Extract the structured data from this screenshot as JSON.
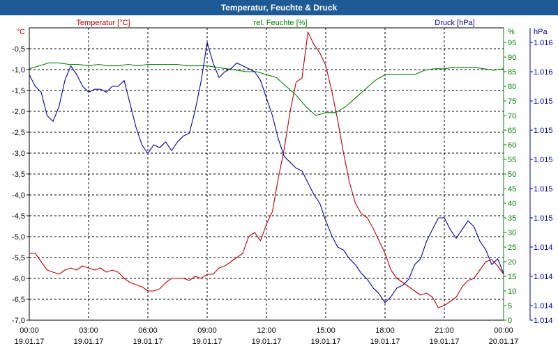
{
  "chart_data": {
    "type": "line",
    "title": "Temperatur, Feuchte & Druck",
    "x_ticks": [
      {
        "time": "00:00",
        "date": "19.01.17"
      },
      {
        "time": "03:00",
        "date": "19.01.17"
      },
      {
        "time": "06:00",
        "date": "19.01.17"
      },
      {
        "time": "09:00",
        "date": "19.01.17"
      },
      {
        "time": "12:00",
        "date": "19.01.17"
      },
      {
        "time": "15:00",
        "date": "19.01.17"
      },
      {
        "time": "18:00",
        "date": "19.01.17"
      },
      {
        "time": "21:00",
        "date": "19.01.17"
      },
      {
        "time": "00:00",
        "date": "20.01.17"
      }
    ],
    "x_range_hours": [
      0,
      24
    ],
    "grid": true,
    "axes": {
      "temperature": {
        "label": "Temperatur [°C]",
        "unit": "°C",
        "color": "#c00000",
        "side": "left",
        "range": [
          -7.0,
          0.0
        ],
        "ticks": [
          "-0,5",
          "-1,0",
          "-1,5",
          "-2,0",
          "-2,5",
          "-3,0",
          "-3,5",
          "-4,0",
          "-4,5",
          "-5,0",
          "-5,5",
          "-6,0",
          "-6,5",
          "-7,0"
        ],
        "tick_values": [
          -0.5,
          -1.0,
          -1.5,
          -2.0,
          -2.5,
          -3.0,
          -3.5,
          -4.0,
          -4.5,
          -5.0,
          -5.5,
          -6.0,
          -6.5,
          -7.0
        ]
      },
      "humidity": {
        "label": "rel. Feuchte [%]",
        "unit": "%",
        "color": "#008000",
        "side": "right",
        "range": [
          0,
          100
        ],
        "ticks": [
          "95",
          "90",
          "85",
          "80",
          "75",
          "70",
          "65",
          "60",
          "55",
          "50",
          "45",
          "40",
          "35",
          "30",
          "25",
          "20",
          "15",
          "10",
          "5",
          "0"
        ],
        "tick_values": [
          95,
          90,
          85,
          80,
          75,
          70,
          65,
          60,
          55,
          50,
          45,
          40,
          35,
          30,
          25,
          20,
          15,
          10,
          5,
          0
        ]
      },
      "pressure": {
        "label": "Druck [hPa]",
        "unit": "hPa",
        "color": "#0000aa",
        "side": "right-outer",
        "range": [
          0,
          100
        ],
        "ticks": [
          "1.016",
          "1.016",
          "1.015",
          "1.015",
          "1.015",
          "1.015",
          "1.015",
          "1.014",
          "1.014",
          "1.014",
          "1.014"
        ],
        "tick_values": [
          95,
          85,
          75,
          65,
          55,
          45,
          35,
          25,
          15,
          5,
          0
        ]
      }
    },
    "series": [
      {
        "name": "Temperatur [°C]",
        "axis": "temperature",
        "color": "#c00000",
        "x": [
          0,
          0.3,
          0.6,
          0.9,
          1.2,
          1.5,
          1.8,
          2.1,
          2.4,
          2.7,
          3.0,
          3.3,
          3.6,
          3.9,
          4.2,
          4.5,
          4.8,
          5.1,
          5.4,
          5.7,
          6.0,
          6.3,
          6.6,
          6.9,
          7.2,
          7.5,
          7.8,
          8.1,
          8.4,
          8.7,
          9.0,
          9.3,
          9.6,
          9.9,
          10.2,
          10.5,
          10.8,
          11.1,
          11.4,
          11.7,
          12.0,
          12.3,
          12.6,
          12.9,
          13.2,
          13.5,
          13.8,
          14.1,
          14.4,
          14.7,
          15.0,
          15.3,
          15.6,
          15.9,
          16.2,
          16.5,
          16.8,
          17.1,
          17.4,
          17.7,
          18.0,
          18.3,
          18.6,
          18.9,
          19.2,
          19.5,
          19.8,
          20.1,
          20.4,
          20.7,
          21.0,
          21.3,
          21.6,
          21.9,
          22.2,
          22.5,
          22.8,
          23.1,
          23.4,
          23.7,
          24.0
        ],
        "values": [
          -5.4,
          -5.4,
          -5.6,
          -5.8,
          -5.85,
          -5.9,
          -5.8,
          -5.75,
          -5.8,
          -5.7,
          -5.75,
          -5.8,
          -5.75,
          -5.85,
          -5.8,
          -5.85,
          -6.0,
          -6.1,
          -6.15,
          -6.2,
          -6.3,
          -6.3,
          -6.25,
          -6.1,
          -6.0,
          -6.0,
          -6.0,
          -6.05,
          -5.95,
          -6.0,
          -5.9,
          -5.9,
          -5.75,
          -5.7,
          -5.6,
          -5.5,
          -5.4,
          -5.0,
          -4.9,
          -5.1,
          -4.7,
          -4.4,
          -3.6,
          -2.9,
          -2.0,
          -1.3,
          -1.2,
          -0.1,
          -0.4,
          -0.6,
          -0.9,
          -1.5,
          -2.2,
          -3.0,
          -3.7,
          -4.2,
          -4.45,
          -4.55,
          -4.8,
          -5.1,
          -5.4,
          -5.8,
          -6.0,
          -6.1,
          -6.2,
          -6.3,
          -6.4,
          -6.35,
          -6.45,
          -6.7,
          -6.65,
          -6.55,
          -6.45,
          -6.2,
          -6.05,
          -6.0,
          -5.8,
          -5.6,
          -5.55,
          -5.7,
          -5.9
        ]
      },
      {
        "name": "rel. Feuchte [%]",
        "axis": "humidity",
        "color": "#008000",
        "x": [
          0,
          0.5,
          1,
          1.5,
          2,
          2.5,
          3,
          3.5,
          4,
          4.5,
          5,
          5.5,
          6,
          6.5,
          7,
          7.5,
          8,
          8.5,
          9,
          9.5,
          10,
          10.5,
          11,
          11.5,
          12,
          12.5,
          13,
          13.5,
          14,
          14.5,
          15,
          15.5,
          16,
          16.5,
          17,
          17.5,
          18,
          18.5,
          19,
          19.5,
          20,
          20.5,
          21,
          21.5,
          22,
          22.5,
          23,
          23.5,
          24
        ],
        "values": [
          86,
          87,
          88,
          88,
          87.5,
          87.5,
          87,
          87.5,
          87,
          87,
          87.5,
          87,
          87.5,
          87.5,
          87.5,
          87.5,
          87,
          87,
          87,
          86.5,
          86,
          85.5,
          85,
          85,
          84,
          83,
          80,
          77,
          73,
          70,
          71,
          71,
          73,
          76,
          79,
          82,
          84,
          84,
          84,
          84,
          85.5,
          86,
          86,
          86.5,
          86.5,
          86.5,
          86,
          85.5,
          86
        ]
      },
      {
        "name": "Druck [hPa]",
        "axis": "pressure",
        "color": "#0000aa",
        "x": [
          0,
          0.3,
          0.6,
          0.9,
          1.2,
          1.5,
          1.8,
          2.1,
          2.4,
          2.7,
          3.0,
          3.3,
          3.6,
          3.9,
          4.2,
          4.5,
          4.8,
          5.1,
          5.4,
          5.7,
          6.0,
          6.3,
          6.6,
          6.9,
          7.2,
          7.5,
          7.8,
          8.1,
          8.4,
          8.7,
          9.0,
          9.3,
          9.6,
          9.9,
          10.2,
          10.5,
          10.8,
          11.1,
          11.4,
          11.7,
          12.0,
          12.3,
          12.6,
          12.9,
          13.2,
          13.5,
          13.8,
          14.1,
          14.4,
          14.7,
          15.0,
          15.3,
          15.6,
          15.9,
          16.2,
          16.5,
          16.8,
          17.1,
          17.4,
          17.7,
          18.0,
          18.3,
          18.6,
          18.9,
          19.2,
          19.5,
          19.8,
          20.1,
          20.4,
          20.7,
          21.0,
          21.3,
          21.6,
          21.9,
          22.2,
          22.5,
          22.8,
          23.1,
          23.4,
          23.7,
          24.0
        ],
        "values": [
          84,
          80,
          78,
          70,
          68,
          73,
          82,
          87,
          84,
          80,
          78,
          79,
          79,
          78,
          80,
          80,
          82,
          74,
          66,
          60,
          57,
          60,
          59,
          61,
          58,
          61,
          63,
          64,
          72,
          82,
          95,
          88,
          83,
          85,
          86,
          88,
          87,
          86,
          85,
          82,
          76,
          70,
          62,
          56,
          54,
          52,
          51,
          47,
          43,
          40,
          34,
          29,
          25,
          24,
          21,
          19,
          16,
          14,
          11,
          9,
          6,
          8,
          11,
          12,
          14,
          19,
          21,
          27,
          31,
          35,
          35,
          31,
          28,
          31,
          34,
          32,
          27,
          24,
          19,
          21,
          16
        ]
      }
    ]
  }
}
